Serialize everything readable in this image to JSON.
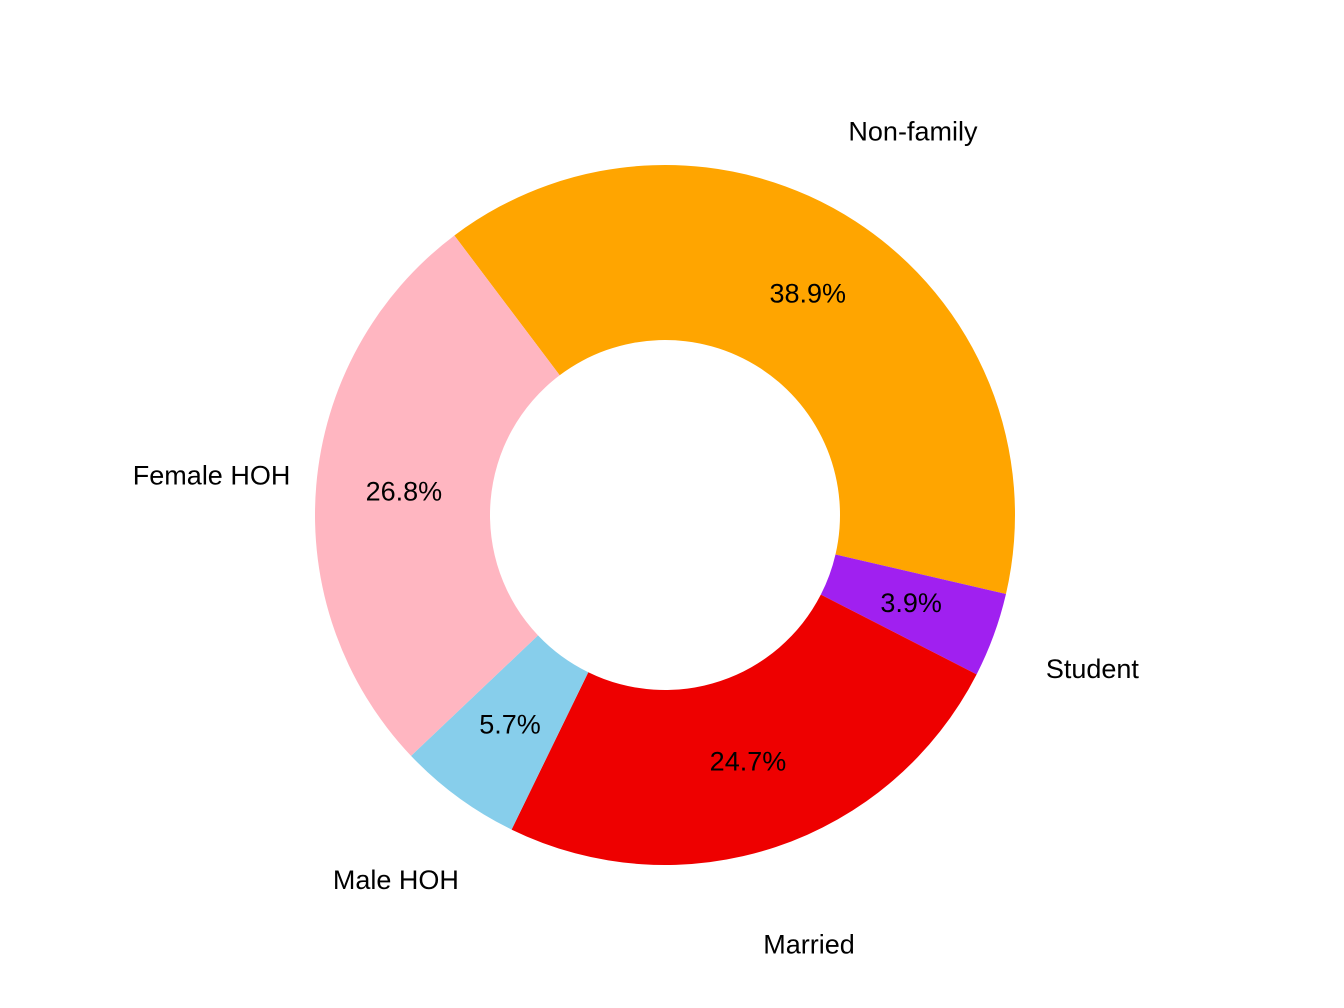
{
  "chart_data": {
    "type": "donut",
    "categories": [
      "Non-family",
      "Student",
      "Married",
      "Male HOH",
      "Female HOH"
    ],
    "values": [
      38.9,
      3.9,
      24.7,
      5.7,
      26.8
    ],
    "value_labels": [
      "38.9%",
      "3.9%",
      "24.7%",
      "5.7%",
      "26.8%"
    ],
    "colors": [
      "#ffa500",
      "#a020f0",
      "#ee0000",
      "#87ceeb",
      "#ffb6c1"
    ]
  }
}
